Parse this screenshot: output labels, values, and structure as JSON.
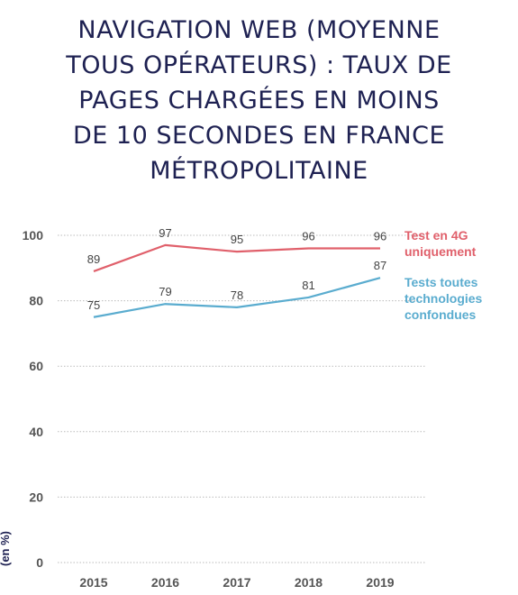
{
  "title_lines": [
    "NAVIGATION WEB (MOYENNE",
    "TOUS OPÉRATEURS) : TAUX DE",
    "PAGES CHARGÉES EN MOINS",
    "DE 10 SECONDES EN FRANCE",
    "MÉTROPOLITAINE"
  ],
  "chart_data": {
    "type": "line",
    "title": "NAVIGATION WEB (MOYENNE TOUS OPÉRATEURS) : TAUX DE PAGES CHARGÉES EN MOINS DE 10 SECONDES EN FRANCE MÉTROPOLITAINE",
    "ylabel": "(en %)",
    "xlabel": "",
    "x": [
      "2015",
      "2016",
      "2017",
      "2018",
      "2019"
    ],
    "ylim": [
      0,
      100
    ],
    "yticks": [
      0,
      20,
      40,
      60,
      80,
      100
    ],
    "grid": true,
    "legend_position": "right",
    "series": [
      {
        "name_lines": [
          "Test en 4G",
          "uniquement"
        ],
        "color": "#e0606b",
        "values": [
          89,
          97,
          95,
          96,
          96
        ]
      },
      {
        "name_lines": [
          "Tests toutes",
          "technologies",
          "confondues"
        ],
        "color": "#5aaccf",
        "values": [
          75,
          79,
          78,
          81,
          87
        ]
      }
    ]
  },
  "colors": {
    "title": "#1e2152",
    "axis_text": "#555555",
    "grid": "#bbbbbb"
  }
}
